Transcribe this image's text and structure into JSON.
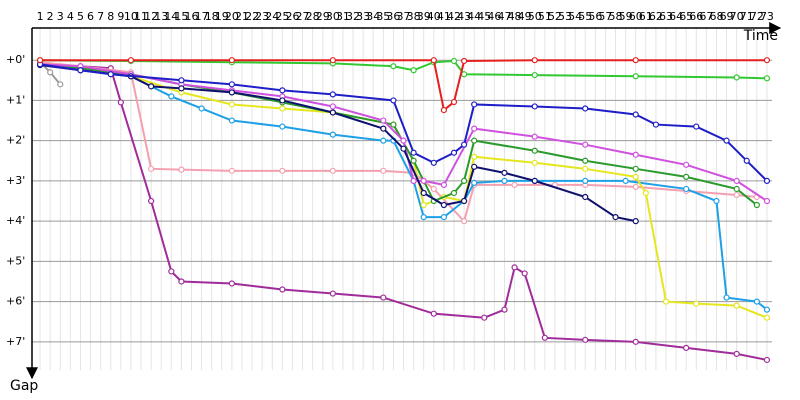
{
  "chart_data": {
    "type": "line",
    "x_label": "Time",
    "y_label": "Gap",
    "xlim": [
      0.2,
      73.5
    ],
    "ylim": [
      -0.8,
      7.7
    ],
    "inverted_y": true,
    "grid": true,
    "xticks": [
      1,
      2,
      3,
      4,
      5,
      6,
      7,
      8,
      9,
      10,
      11,
      12,
      13,
      14,
      15,
      16,
      17,
      18,
      19,
      20,
      21,
      22,
      23,
      24,
      25,
      26,
      27,
      28,
      29,
      30,
      31,
      32,
      33,
      34,
      35,
      36,
      37,
      38,
      39,
      40,
      41,
      42,
      43,
      44,
      45,
      46,
      47,
      48,
      49,
      50,
      51,
      52,
      53,
      54,
      55,
      56,
      57,
      58,
      59,
      60,
      61,
      62,
      63,
      64,
      65,
      66,
      67,
      68,
      69,
      70,
      71,
      72,
      73
    ],
    "yticks": [
      {
        "value": 0,
        "label": "+0'"
      },
      {
        "value": 1,
        "label": "+1'"
      },
      {
        "value": 2,
        "label": "+2'"
      },
      {
        "value": 3,
        "label": "+3'"
      },
      {
        "value": 4,
        "label": "+4'"
      },
      {
        "value": 5,
        "label": "+5'"
      },
      {
        "value": 6,
        "label": "+6'"
      },
      {
        "value": 7,
        "label": "+7'"
      }
    ],
    "series": [
      {
        "color": "#9a9a9a",
        "x": [
          1,
          2,
          3
        ],
        "values": [
          0.05,
          0.3,
          0.6
        ]
      },
      {
        "color": "#a02c9a",
        "x": [
          1,
          5,
          8,
          9,
          12,
          14,
          15,
          20,
          25,
          30,
          35,
          40,
          45,
          47,
          48,
          49,
          51,
          55,
          60,
          65,
          70,
          73
        ],
        "values": [
          0.1,
          0.15,
          0.2,
          1.05,
          3.5,
          5.25,
          5.5,
          5.55,
          5.7,
          5.8,
          5.9,
          6.3,
          6.4,
          6.2,
          5.15,
          5.3,
          6.9,
          6.95,
          7.0,
          7.15,
          7.3,
          7.45
        ]
      },
      {
        "color": "#f4a0b0",
        "x": [
          1,
          5,
          10,
          12,
          15,
          20,
          25,
          30,
          35,
          38,
          40,
          43,
          44,
          48,
          52,
          55,
          60,
          65,
          70,
          72
        ],
        "values": [
          0.05,
          0.15,
          0.3,
          2.7,
          2.72,
          2.75,
          2.75,
          2.75,
          2.75,
          2.8,
          3.2,
          4.0,
          3.1,
          3.1,
          3.1,
          3.1,
          3.15,
          3.25,
          3.35,
          3.4
        ]
      },
      {
        "color": "#1ea0e6",
        "x": [
          1,
          5,
          10,
          14,
          17,
          20,
          25,
          30,
          35,
          36,
          38,
          39,
          41,
          43,
          44,
          47,
          50,
          55,
          59,
          65,
          68,
          69,
          72,
          73
        ],
        "values": [
          0.1,
          0.2,
          0.4,
          0.9,
          1.2,
          1.5,
          1.65,
          1.85,
          2.0,
          2.0,
          3.0,
          3.9,
          3.9,
          3.5,
          3.05,
          3.0,
          3.0,
          3.0,
          3.0,
          3.2,
          3.5,
          5.9,
          6.0,
          6.2
        ]
      },
      {
        "color": "#e6e61e",
        "x": [
          1,
          5,
          10,
          15,
          20,
          25,
          30,
          36,
          38,
          39,
          41,
          43,
          44,
          50,
          55,
          60,
          61,
          63,
          66,
          70,
          73
        ],
        "values": [
          0.1,
          0.2,
          0.4,
          0.8,
          1.1,
          1.2,
          1.3,
          1.6,
          2.5,
          3.6,
          3.4,
          3.5,
          2.4,
          2.55,
          2.7,
          2.9,
          3.3,
          6.0,
          6.05,
          6.1,
          6.4
        ]
      },
      {
        "color": "#2a9a2a",
        "x": [
          1,
          5,
          10,
          15,
          20,
          25,
          30,
          36,
          38,
          40,
          42,
          43,
          44,
          50,
          55,
          60,
          65,
          70,
          72
        ],
        "values": [
          0.12,
          0.2,
          0.35,
          0.6,
          0.8,
          1.05,
          1.3,
          1.6,
          2.5,
          3.5,
          3.3,
          3.0,
          2.0,
          2.25,
          2.5,
          2.7,
          2.9,
          3.2,
          3.6
        ]
      },
      {
        "color": "#d050e0",
        "x": [
          1,
          5,
          10,
          15,
          20,
          25,
          30,
          35,
          37,
          38,
          39,
          41,
          44,
          50,
          55,
          60,
          65,
          70,
          73
        ],
        "values": [
          0.1,
          0.15,
          0.35,
          0.6,
          0.75,
          0.9,
          1.15,
          1.5,
          2.0,
          3.0,
          3.0,
          3.1,
          1.7,
          1.9,
          2.1,
          2.35,
          2.6,
          3.0,
          3.5
        ]
      },
      {
        "color": "#10106e",
        "x": [
          1,
          5,
          10,
          12,
          15,
          20,
          25,
          30,
          35,
          37,
          39,
          41,
          43,
          44,
          47,
          50,
          55,
          58,
          60
        ],
        "values": [
          0.12,
          0.25,
          0.4,
          0.65,
          0.7,
          0.8,
          1.0,
          1.3,
          1.7,
          2.2,
          3.3,
          3.6,
          3.5,
          2.65,
          2.8,
          3.0,
          3.4,
          3.9,
          4.0
        ]
      },
      {
        "color": "#1e1ec8",
        "x": [
          1,
          5,
          8,
          15,
          20,
          25,
          30,
          36,
          38,
          40,
          42,
          43,
          44,
          50,
          55,
          60,
          62,
          66,
          69,
          71,
          73
        ],
        "values": [
          0.1,
          0.25,
          0.35,
          0.5,
          0.6,
          0.75,
          0.85,
          1.0,
          2.3,
          2.55,
          2.3,
          2.1,
          1.1,
          1.15,
          1.2,
          1.35,
          1.6,
          1.65,
          2.0,
          2.5,
          3.0
        ]
      },
      {
        "color": "#32c832",
        "x": [
          1,
          10,
          20,
          30,
          36,
          38,
          40,
          42,
          43,
          50,
          60,
          70,
          73
        ],
        "values": [
          0.0,
          0.02,
          0.05,
          0.08,
          0.15,
          0.25,
          0.05,
          0.02,
          0.35,
          0.37,
          0.4,
          0.43,
          0.45
        ]
      },
      {
        "color": "#e61e1e",
        "x": [
          1,
          10,
          20,
          30,
          40,
          41,
          42,
          43,
          50,
          60,
          73
        ],
        "values": [
          0.0,
          0.0,
          0.0,
          0.0,
          0.0,
          1.24,
          1.04,
          0.02,
          0.0,
          0.0,
          0.0
        ]
      }
    ]
  }
}
